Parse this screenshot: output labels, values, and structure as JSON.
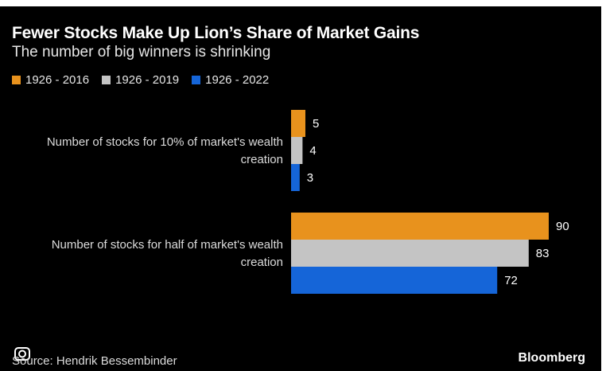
{
  "header": {
    "title": "Fewer Stocks Make Up Lion’s Share of Market Gains",
    "subtitle": "The number of big winners is shrinking"
  },
  "legend": [
    {
      "label": "1926 - 2016",
      "color": "#e8921d"
    },
    {
      "label": "1926 - 2019",
      "color": "#c4c4c4"
    },
    {
      "label": "1926 - 2022",
      "color": "#1565d8"
    }
  ],
  "chart_data": {
    "type": "bar",
    "orientation": "horizontal",
    "categories": [
      [
        "Number of stocks for 10% of market's wealth",
        "creation"
      ],
      [
        "Number of stocks for half of market's wealth",
        "creation"
      ]
    ],
    "series": [
      {
        "name": "1926 - 2016",
        "values": [
          5,
          90
        ],
        "color": "#e8921d"
      },
      {
        "name": "1926 - 2019",
        "values": [
          4,
          83
        ],
        "color": "#c4c4c4"
      },
      {
        "name": "1926 - 2022",
        "values": [
          3,
          72
        ],
        "color": "#1565d8"
      }
    ],
    "xlim": [
      0,
      90
    ],
    "grid": false
  },
  "footer": {
    "source": "Source: Hendrik Bessembinder",
    "brand": "Bloomberg"
  }
}
